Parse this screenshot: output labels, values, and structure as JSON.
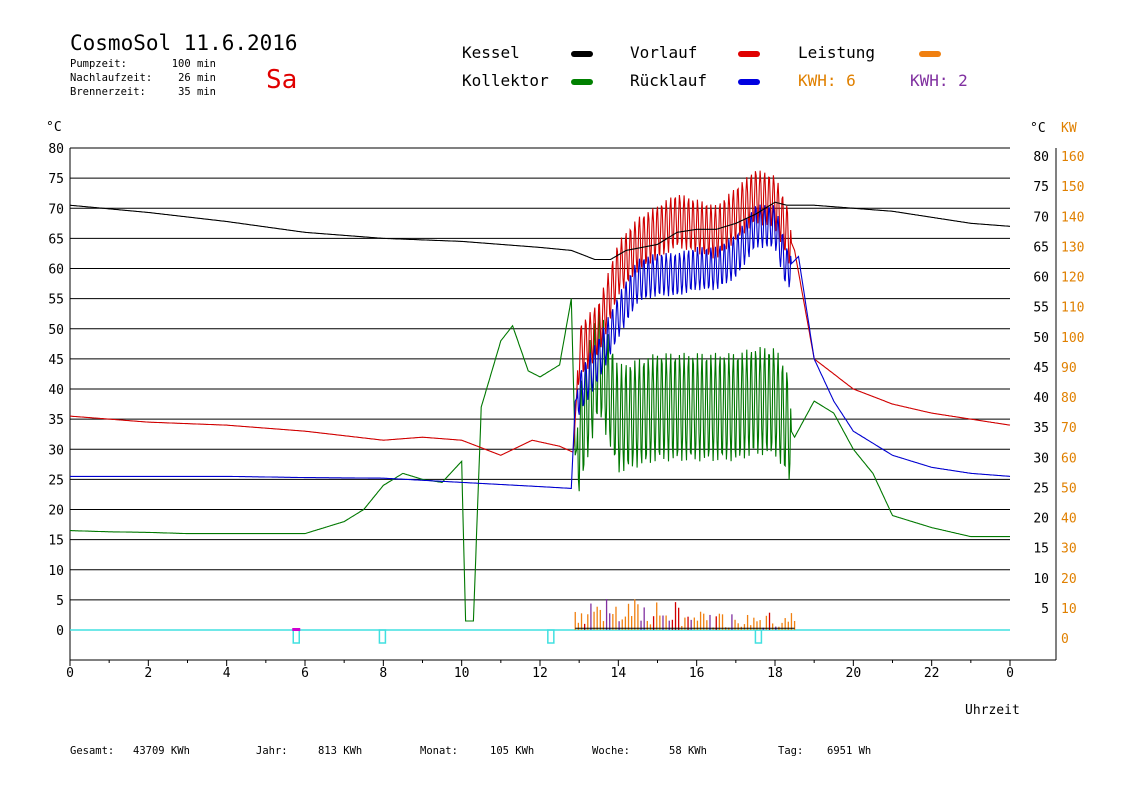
{
  "header": {
    "title": "CosmoSol 11.6.2016",
    "day": "Sa",
    "info": [
      {
        "label": "Pumpzeit:",
        "value": "100 min"
      },
      {
        "label": "Nachlaufzeit:",
        "value": "26 min"
      },
      {
        "label": "Brennerzeit:",
        "value": "35 min"
      }
    ]
  },
  "legend": {
    "kessel": "Kessel",
    "vorlauf": "Vorlauf",
    "leistung": "Leistung",
    "kollektor": "Kollektor",
    "ruecklauf": "Rücklauf",
    "kwh1": "KWH: 6",
    "kwh2": "KWH: 2"
  },
  "colors": {
    "kessel": "#000000",
    "vorlauf": "#d00000",
    "leistung": "#f08010",
    "kollektor": "#007800",
    "ruecklauf": "#0000d0",
    "kwh2": "#8030a0",
    "pump": "#40e0e0",
    "kw_axis": "#e08000"
  },
  "axes": {
    "left_unit": "°C",
    "right_unit": "°C",
    "kw_unit": "KW",
    "xlabel": "Uhrzeit"
  },
  "footer": [
    {
      "label": "Gesamt:",
      "value": "43709 KWh"
    },
    {
      "label": "Jahr:",
      "value": "813 KWh"
    },
    {
      "label": "Monat:",
      "value": "105 KWh"
    },
    {
      "label": "Woche:",
      "value": "58 KWh"
    },
    {
      "label": "Tag:",
      "value": "6951 Wh"
    }
  ],
  "chart_data": {
    "type": "line",
    "title": "CosmoSol 11.6.2016",
    "xlabel": "Uhrzeit",
    "ylabel": "°C",
    "y2label": "KW",
    "xlim": [
      0,
      24
    ],
    "ylim": [
      0,
      80
    ],
    "y2lim": [
      0,
      160
    ],
    "x_ticks": [
      "0",
      "2",
      "4",
      "6",
      "8",
      "10",
      "12",
      "14",
      "16",
      "18",
      "20",
      "22",
      "0"
    ],
    "y_ticks": [
      0,
      5,
      10,
      15,
      20,
      25,
      30,
      35,
      40,
      45,
      50,
      55,
      60,
      65,
      70,
      75,
      80
    ],
    "y_ticks_right": [
      5,
      10,
      15,
      20,
      25,
      30,
      35,
      40,
      45,
      50,
      55,
      60,
      65,
      70,
      75,
      80
    ],
    "y2_ticks": [
      0,
      10,
      20,
      30,
      40,
      50,
      60,
      70,
      80,
      90,
      100,
      110,
      120,
      130,
      140,
      150,
      160
    ],
    "grid": true,
    "series": [
      {
        "name": "Kessel",
        "x": [
          0,
          2,
          4,
          6,
          8,
          10,
          11,
          12,
          12.8,
          13.4,
          13.8,
          14.2,
          15,
          15.5,
          16,
          16.5,
          17,
          17.5,
          18,
          18.3,
          19,
          20,
          21,
          22,
          23,
          24
        ],
        "y": [
          70.5,
          69.3,
          67.8,
          66,
          65,
          64.5,
          64,
          63.5,
          63,
          61.5,
          61.5,
          63,
          64,
          66,
          66.5,
          66.5,
          67.5,
          69,
          71,
          70.5,
          70.5,
          70,
          69.5,
          68.5,
          67.5,
          67
        ]
      },
      {
        "name": "Vorlauf",
        "x": [
          0,
          2,
          4,
          6,
          8,
          9,
          10,
          11,
          11.8,
          12.5,
          12.85,
          13,
          13.5,
          14,
          14.5,
          15,
          15.5,
          16,
          16.5,
          17,
          17.5,
          18,
          18.5,
          19,
          20,
          21,
          22,
          23,
          24
        ],
        "y": [
          35.5,
          34.5,
          34,
          33,
          31.5,
          32,
          31.5,
          29,
          31.5,
          30.5,
          29.5,
          46,
          50,
          60,
          64,
          66,
          68,
          67,
          66,
          69,
          72,
          71,
          63,
          45,
          40,
          37.5,
          36,
          35,
          34
        ]
      },
      {
        "name": "Kollektor",
        "x": [
          0,
          1,
          2,
          3,
          4,
          5,
          6,
          7,
          7.5,
          8,
          8.5,
          9,
          9.5,
          10,
          10.1,
          10.3,
          10.5,
          11,
          11.3,
          11.7,
          12,
          12.5,
          12.8,
          12.9,
          13.5,
          14,
          15,
          16,
          17,
          17.5,
          18,
          18.5,
          19,
          19.5,
          20,
          20.5,
          21,
          22,
          23,
          24
        ],
        "y": [
          16.5,
          16.3,
          16.2,
          16,
          16,
          16,
          16,
          18,
          20,
          24,
          26,
          25,
          24.5,
          28,
          1.5,
          1.5,
          37,
          48,
          50.5,
          43,
          42,
          44,
          55,
          29,
          45,
          35,
          37,
          37,
          37,
          38,
          38,
          32,
          38,
          36,
          30,
          26,
          19,
          17,
          15.5,
          15.5
        ]
      },
      {
        "name": "Rücklauf",
        "x": [
          0,
          2,
          4,
          6,
          8,
          10,
          12,
          12.8,
          12.9,
          13.5,
          14,
          14.5,
          15,
          15.5,
          16,
          16.5,
          17,
          17.5,
          18,
          18.3,
          18.6,
          19,
          19.5,
          20,
          21,
          22,
          23,
          24
        ],
        "y": [
          25.5,
          25.5,
          25.5,
          25.3,
          25.2,
          24.5,
          23.8,
          23.5,
          38,
          45,
          52,
          58,
          59,
          59,
          60,
          60,
          62,
          67,
          67,
          60,
          62,
          45,
          38,
          33,
          29,
          27,
          26,
          25.5
        ]
      }
    ]
  }
}
